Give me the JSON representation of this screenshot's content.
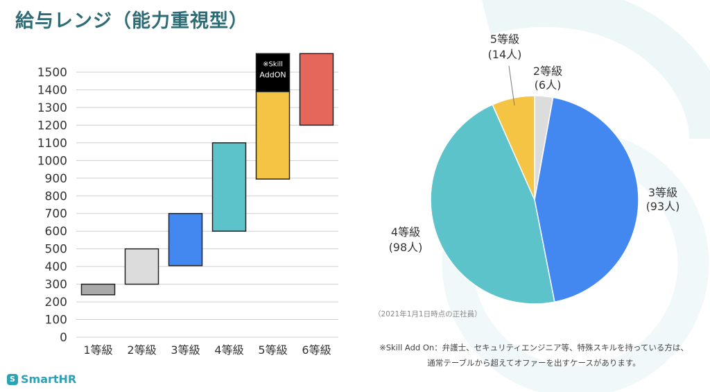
{
  "title": "給与レンジ（能力重視型）",
  "chart_data": [
    {
      "type": "bar",
      "subtype": "floating-range",
      "categories": [
        "1等級",
        "2等級",
        "3等級",
        "4等級",
        "5等級",
        "6等級"
      ],
      "ranges": [
        {
          "category": "1等級",
          "low": 240,
          "high": 300,
          "color": "#a9a9a9"
        },
        {
          "category": "2等級",
          "low": 300,
          "high": 500,
          "color": "#dcdcdc"
        },
        {
          "category": "3等級",
          "low": 405,
          "high": 700,
          "color": "#4288f0"
        },
        {
          "category": "4等級",
          "low": 600,
          "high": 1100,
          "color": "#5bc3c9"
        },
        {
          "category": "5等級",
          "low": 895,
          "high": 1390,
          "color": "#f5c445"
        },
        {
          "category": "6等級",
          "low": 1200,
          "high": 1610,
          "color": "#e5675c"
        }
      ],
      "addon": {
        "category": "5等級",
        "low": 1390,
        "high": 1610,
        "color": "#000000",
        "label_line1": "※Skill",
        "label_line2": "AddON"
      },
      "ylim": [
        0,
        1500
      ],
      "yticks": [
        "0",
        "100",
        "200",
        "300",
        "400",
        "500",
        "600",
        "700",
        "800",
        "900",
        "1000",
        "1100",
        "1200",
        "1300",
        "1400",
        "1500"
      ],
      "grid": true
    },
    {
      "type": "pie",
      "slices": [
        {
          "name": "2等級",
          "count": "(6人)",
          "value": 6,
          "color": "#dcdcdc"
        },
        {
          "name": "3等級",
          "count": "(93人)",
          "value": 93,
          "color": "#4288f0"
        },
        {
          "name": "4等級",
          "count": "(98人)",
          "value": 98,
          "color": "#5bc3c9"
        },
        {
          "name": "5等級",
          "count": "(14人)",
          "value": 14,
          "color": "#f5c445"
        }
      ]
    }
  ],
  "notes": {
    "date": "（2021年1月1日時点の正社員）",
    "addon_line1": "※Skill Add On：弁護士、セキュリティエンジニア等、特殊スキルを持っている方は、",
    "addon_line2": "通常テーブルから超えてオファーを出すケースがあります。"
  },
  "logo": {
    "badge": "S",
    "text": "SmartHR"
  },
  "colors": {
    "title": "#2e6b75",
    "accent": "#2aa3b5"
  }
}
